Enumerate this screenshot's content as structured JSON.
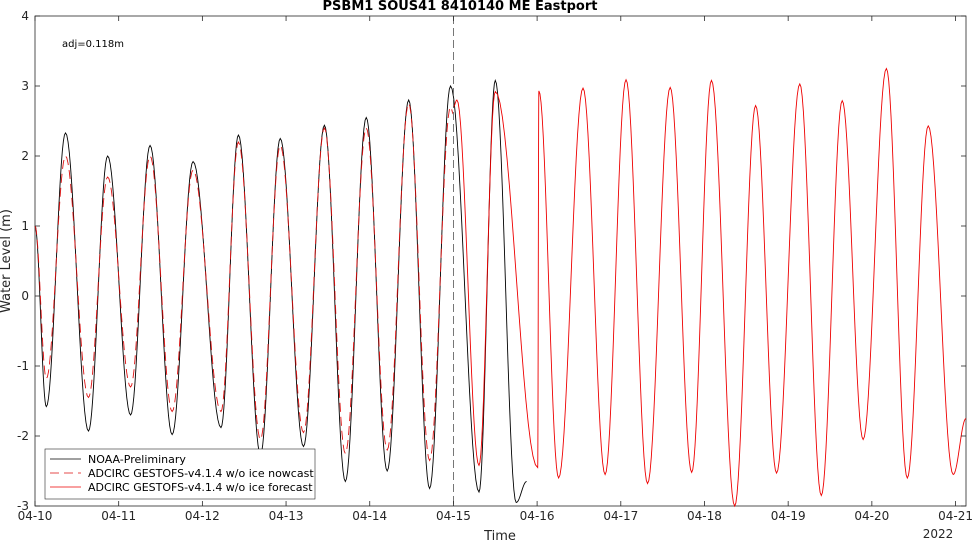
{
  "chart_data": {
    "type": "line",
    "title": "PSBM1 SOUS41 8410140 ME Eastport",
    "xlabel": "Time",
    "ylabel": "Water Level (m)",
    "annotation": "adj=0.118m",
    "year_label": "2022",
    "x_ticks": [
      "04-10",
      "04-11",
      "04-12",
      "04-13",
      "04-14",
      "04-15",
      "04-16",
      "04-17",
      "04-18",
      "04-19",
      "04-20",
      "04-21"
    ],
    "y_ticks": [
      "-3",
      "-2",
      "-1",
      "0",
      "1",
      "2",
      "3",
      "4"
    ],
    "xlim": [
      "2022-04-10 00:00",
      "2022-04-21 03:00"
    ],
    "ylim": [
      -3,
      4
    ],
    "grid": false,
    "legend_position": "bottom-left",
    "nowcast_forecast_divider": "2022-04-15 00:00",
    "series": [
      {
        "name": "NOAA-Preliminary",
        "color": "#000000",
        "style": "solid",
        "x_start": "2022-04-10 00:00",
        "x_end": "2022-04-15 21:00",
        "extrema": [
          [
            "2022-04-10 00:00",
            1.0
          ],
          [
            "2022-04-10 03:15",
            -1.58
          ],
          [
            "2022-04-10 08:45",
            2.33
          ],
          [
            "2022-04-10 15:20",
            -1.93
          ],
          [
            "2022-04-10 20:50",
            2.0
          ],
          [
            "2022-04-11 03:25",
            -1.7
          ],
          [
            "2022-04-11 09:00",
            2.15
          ],
          [
            "2022-04-11 15:20",
            -1.98
          ],
          [
            "2022-04-11 21:20",
            1.92
          ],
          [
            "2022-04-12 05:20",
            -1.88
          ],
          [
            "2022-04-12 10:20",
            2.3
          ],
          [
            "2022-04-12 16:40",
            -2.27
          ],
          [
            "2022-04-12 22:20",
            2.25
          ],
          [
            "2022-04-13 05:00",
            -2.15
          ],
          [
            "2022-04-13 11:00",
            2.44
          ],
          [
            "2022-04-13 17:00",
            -2.65
          ],
          [
            "2022-04-13 23:00",
            2.55
          ],
          [
            "2022-04-14 05:00",
            -2.5
          ],
          [
            "2022-04-14 11:10",
            2.8
          ],
          [
            "2022-04-14 17:10",
            -2.75
          ],
          [
            "2022-04-14 23:10",
            3.0
          ],
          [
            "2022-04-15 07:20",
            -2.8
          ],
          [
            "2022-04-15 12:00",
            3.08
          ],
          [
            "2022-04-15 18:00",
            -2.95
          ],
          [
            "2022-04-15 21:00",
            -2.65
          ]
        ]
      },
      {
        "name": "ADCIRC GESTOFS-v4.1.4 w/o ice nowcast",
        "color": "#dd1111",
        "style": "dashed",
        "x_start": "2022-04-10 00:00",
        "x_end": "2022-04-15 00:00",
        "extrema": [
          [
            "2022-04-10 00:00",
            1.0
          ],
          [
            "2022-04-10 03:15",
            -1.18
          ],
          [
            "2022-04-10 08:45",
            2.0
          ],
          [
            "2022-04-10 15:20",
            -1.45
          ],
          [
            "2022-04-10 20:50",
            1.7
          ],
          [
            "2022-04-11 03:25",
            -1.3
          ],
          [
            "2022-04-11 09:00",
            2.0
          ],
          [
            "2022-04-11 15:20",
            -1.65
          ],
          [
            "2022-04-11 21:20",
            1.8
          ],
          [
            "2022-04-12 05:20",
            -1.65
          ],
          [
            "2022-04-12 10:20",
            2.2
          ],
          [
            "2022-04-12 16:40",
            -2.05
          ],
          [
            "2022-04-12 22:20",
            2.15
          ],
          [
            "2022-04-13 05:00",
            -1.95
          ],
          [
            "2022-04-13 11:00",
            2.4
          ],
          [
            "2022-04-13 17:00",
            -2.25
          ],
          [
            "2022-04-13 23:00",
            2.4
          ],
          [
            "2022-04-14 05:00",
            -2.2
          ],
          [
            "2022-04-14 11:10",
            2.75
          ],
          [
            "2022-04-14 17:10",
            -2.35
          ],
          [
            "2022-04-14 23:10",
            2.7
          ],
          [
            "2022-04-15 00:00",
            2.6
          ]
        ]
      },
      {
        "name": "ADCIRC GESTOFS-v4.1.4 w/o ice forecast",
        "color": "#ee0000",
        "style": "solid",
        "x_start": "2022-04-15 00:00",
        "x_end": "2022-04-21 03:00",
        "extrema": [
          [
            "2022-04-15 00:00",
            2.7
          ],
          [
            "2022-04-15 01:00",
            2.8
          ],
          [
            "2022-04-15 07:20",
            -2.42
          ],
          [
            "2022-04-15 12:00",
            2.92
          ],
          [
            "2022-04-16 00:10",
            -2.45
          ],
          [
            "2022-04-16 00:30",
            2.93
          ],
          [
            "2022-04-16 06:10",
            -2.6
          ],
          [
            "2022-04-16 13:10",
            2.97
          ],
          [
            "2022-04-16 19:30",
            -2.55
          ],
          [
            "2022-04-17 01:30",
            3.09
          ],
          [
            "2022-04-17 07:40",
            -2.68
          ],
          [
            "2022-04-17 14:10",
            2.98
          ],
          [
            "2022-04-17 20:20",
            -2.52
          ],
          [
            "2022-04-18 02:00",
            3.08
          ],
          [
            "2022-04-18 08:40",
            -3.0
          ],
          [
            "2022-04-18 14:40",
            2.72
          ],
          [
            "2022-04-18 20:40",
            -2.53
          ],
          [
            "2022-04-19 03:20",
            3.03
          ],
          [
            "2022-04-19 09:30",
            -2.85
          ],
          [
            "2022-04-19 15:30",
            2.79
          ],
          [
            "2022-04-19 21:30",
            -2.05
          ],
          [
            "2022-04-20 04:10",
            3.25
          ],
          [
            "2022-04-20 10:10",
            -2.6
          ],
          [
            "2022-04-20 16:10",
            2.43
          ],
          [
            "2022-04-20 23:20",
            -2.55
          ],
          [
            "2022-04-21 03:00",
            -1.75
          ]
        ]
      }
    ]
  }
}
